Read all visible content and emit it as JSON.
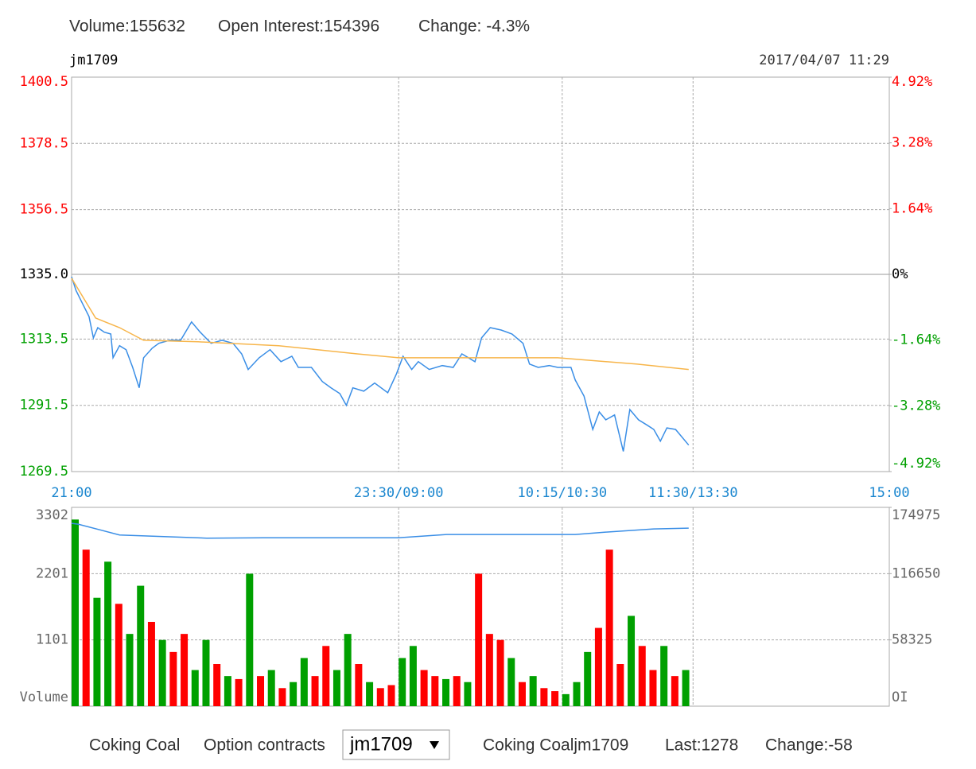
{
  "header": {
    "volume": "Volume:155632",
    "open_interest": "Open Interest:154396",
    "change": "Change: -4.3%"
  },
  "footer": {
    "product": "Coking Coal",
    "option_label": "Option contracts",
    "selected": "jm1709",
    "quote_name": "Coking Coaljm1709",
    "last": "Last:1278",
    "change": "Change:-58"
  },
  "chart_data": [
    {
      "type": "line",
      "title": "jm1709",
      "annotation": "2017/04/07 11:29",
      "xlim": [
        0,
        375
      ],
      "xticks": [
        {
          "value": 0,
          "label": "21:00"
        },
        {
          "value": 150,
          "label": "23:30/09:00"
        },
        {
          "value": 225,
          "label": "10:15/10:30"
        },
        {
          "value": 285,
          "label": "11:30/13:30"
        },
        {
          "value": 375,
          "label": "15:00"
        }
      ],
      "xtick_color": "#1a86cf",
      "ylim": [
        1269.5,
        1400.5
      ],
      "yticks": [
        1269.5,
        1291.5,
        1313.5,
        {
          "value": 1335,
          "label": "1335.0"
        },
        1356.5,
        1378.5,
        1400.5
      ],
      "ytick_colors": [
        "#00a000",
        "#00a000",
        "#00a000",
        "#000000",
        "#ff0000",
        "#ff0000",
        "#ff0000"
      ],
      "y2lim": [
        -4.92,
        4.92
      ],
      "y2ticks": [
        {
          "value": -4.92,
          "label": "-4.92%"
        },
        {
          "value": -3.28,
          "label": "-3.28%"
        },
        {
          "value": -1.64,
          "label": "-1.64%"
        },
        {
          "value": 0,
          "label": "0%"
        },
        {
          "value": 1.64,
          "label": "1.64%"
        },
        {
          "value": 3.28,
          "label": "3.28%"
        },
        {
          "value": 4.92,
          "label": "4.92%"
        }
      ],
      "grid": true,
      "series": [
        {
          "color": "#3a8ee6",
          "x": [
            0,
            2,
            5,
            8,
            10,
            12,
            15,
            18,
            19,
            22,
            25,
            28,
            31,
            33,
            37,
            40,
            45,
            50,
            55,
            59,
            64,
            69,
            74,
            78,
            81,
            86,
            91,
            96,
            101,
            104,
            110,
            115,
            119,
            123,
            126,
            129,
            134,
            139,
            145,
            149,
            152,
            156,
            159,
            164,
            170,
            175,
            179,
            185,
            188,
            192,
            197,
            202,
            207,
            210,
            214,
            219,
            223,
            229,
            231,
            235,
            239,
            242,
            245,
            249,
            253,
            256,
            260,
            264,
            267,
            270,
            273,
            277,
            283
          ],
          "values": [
            1334.2,
            1329.7,
            1325.3,
            1321,
            1313.9,
            1317.3,
            1315.8,
            1315.2,
            1307.3,
            1311.3,
            1310,
            1304.1,
            1297.3,
            1307.3,
            1310.5,
            1312.1,
            1313.1,
            1313.1,
            1319.2,
            1315.8,
            1312.1,
            1313.1,
            1312.1,
            1308.6,
            1303.4,
            1307.3,
            1310,
            1306,
            1307.8,
            1304.1,
            1304.1,
            1299.4,
            1297.3,
            1295.4,
            1291.5,
            1297.3,
            1296.2,
            1298.9,
            1295.7,
            1302,
            1307.8,
            1303.4,
            1306,
            1303.4,
            1304.7,
            1304.1,
            1308.6,
            1306,
            1313.9,
            1317.3,
            1316.5,
            1315.2,
            1312.1,
            1305.2,
            1304.1,
            1304.7,
            1304.1,
            1304.1,
            1299.9,
            1294.6,
            1283.5,
            1289.3,
            1286.7,
            1288.3,
            1276.2,
            1290.1,
            1286.7,
            1284.9,
            1283.5,
            1279.6,
            1284,
            1283.5,
            1278.3
          ]
        },
        {
          "color": "#f7b54a",
          "x": [
            0,
            11,
            22,
            33,
            58,
            95,
            131,
            150,
            186,
            223,
            259,
            283
          ],
          "values": [
            1333.7,
            1320.5,
            1317.3,
            1313.1,
            1312.6,
            1311.3,
            1308.6,
            1307.3,
            1307.3,
            1307.3,
            1305.2,
            1303.4
          ]
        }
      ]
    },
    {
      "type": "bar",
      "ylabel": "Volume",
      "y2label": "OI",
      "xlim": [
        0,
        375
      ],
      "ylim": [
        0,
        3302
      ],
      "yticks": [
        1101,
        2201,
        3302
      ],
      "y2lim": [
        0,
        174975
      ],
      "y2ticks": [
        58325,
        116650,
        174975
      ],
      "grid": true,
      "x": [
        0,
        5,
        10,
        15,
        20,
        25,
        30,
        35,
        40,
        45,
        50,
        55,
        60,
        65,
        70,
        75,
        80,
        85,
        90,
        95,
        100,
        105,
        110,
        115,
        120,
        125,
        130,
        135,
        140,
        145,
        150,
        155,
        160,
        165,
        170,
        175,
        180,
        185,
        190,
        195,
        200,
        205,
        210,
        215,
        220,
        225,
        230,
        235,
        240,
        245,
        250,
        255,
        260,
        265,
        270,
        275,
        280
      ],
      "values": [
        3100,
        2600,
        1800,
        2400,
        1700,
        1200,
        2000,
        1400,
        1100,
        900,
        1200,
        600,
        1100,
        700,
        500,
        450,
        2200,
        500,
        600,
        300,
        400,
        800,
        500,
        1000,
        600,
        1200,
        700,
        400,
        300,
        350,
        800,
        1000,
        600,
        500,
        450,
        500,
        400,
        2200,
        1200,
        1100,
        800,
        400,
        500,
        300,
        250,
        200,
        400,
        900,
        1300,
        2600,
        700,
        1500,
        1000,
        600,
        1000,
        500,
        600
      ],
      "colors": [
        "#00a000",
        "#ff0000",
        "#00a000",
        "#00a000",
        "#ff0000",
        "#00a000",
        "#00a000",
        "#ff0000",
        "#00a000",
        "#ff0000",
        "#ff0000",
        "#00a000",
        "#00a000",
        "#ff0000",
        "#00a000",
        "#ff0000",
        "#00a000",
        "#ff0000",
        "#00a000",
        "#ff0000",
        "#00a000",
        "#00a000",
        "#ff0000",
        "#ff0000",
        "#00a000",
        "#00a000",
        "#ff0000",
        "#00a000",
        "#ff0000",
        "#ff0000",
        "#00a000",
        "#00a000",
        "#ff0000",
        "#ff0000",
        "#00a000",
        "#ff0000",
        "#00a000",
        "#ff0000",
        "#ff0000",
        "#ff0000",
        "#00a000",
        "#ff0000",
        "#00a000",
        "#ff0000",
        "#ff0000",
        "#00a000",
        "#00a000",
        "#00a000",
        "#ff0000",
        "#ff0000",
        "#ff0000",
        "#00a000",
        "#ff0000",
        "#ff0000",
        "#00a000",
        "#ff0000",
        "#00a000"
      ],
      "series": [
        {
          "axis": "y2",
          "color": "#3a8ee6",
          "x": [
            0,
            3,
            22,
            62,
            88,
            150,
            172,
            231,
            245,
            267,
            283
          ],
          "values": [
            160900,
            160200,
            150700,
            147900,
            148270,
            148270,
            151100,
            151100,
            153200,
            156000,
            156700
          ]
        }
      ]
    }
  ]
}
